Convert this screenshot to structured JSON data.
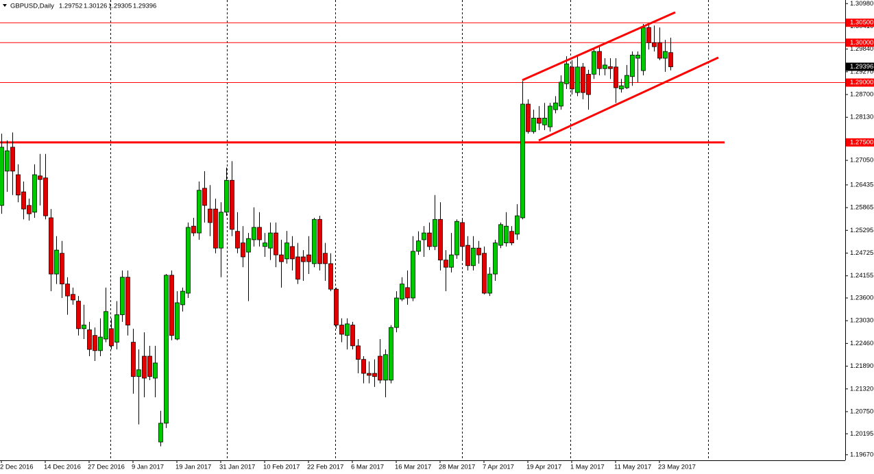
{
  "chart_data": {
    "type": "candlestick",
    "title": "GBPUSD,Daily",
    "categories": [
      "2 Dec 2016",
      null,
      null,
      null,
      null,
      null,
      null,
      null,
      "14 Dec 2016",
      null,
      null,
      null,
      null,
      null,
      null,
      null,
      "27 Dec 2016",
      null,
      null,
      null,
      null,
      null,
      null,
      null,
      "9 Jan 2017",
      null,
      null,
      null,
      null,
      null,
      null,
      null,
      "19 Jan 2017",
      null,
      null,
      null,
      null,
      null,
      null,
      null,
      "31 Jan 2017",
      null,
      null,
      null,
      null,
      null,
      null,
      null,
      "10 Feb 2017",
      null,
      null,
      null,
      null,
      null,
      null,
      null,
      "22 Feb 2017",
      null,
      null,
      null,
      null,
      null,
      null,
      null,
      "6 Mar 2017",
      null,
      null,
      null,
      null,
      null,
      null,
      null,
      "16 Mar 2017",
      null,
      null,
      null,
      null,
      null,
      null,
      null,
      "28 Mar 2017",
      null,
      null,
      null,
      null,
      null,
      null,
      null,
      "7 Apr 2017",
      null,
      null,
      null,
      null,
      null,
      null,
      null,
      "19 Apr 2017",
      null,
      null,
      null,
      null,
      null,
      null,
      null,
      "1 May 2017",
      null,
      null,
      null,
      null,
      null,
      null,
      null,
      "11 May 2017",
      null,
      null,
      null,
      null,
      null,
      null,
      null,
      "23 May 2017",
      null,
      null
    ],
    "open": [
      1.2592,
      1.2678,
      1.2738,
      1.2669,
      1.2626,
      1.2592,
      1.2575,
      1.2666,
      1.2661,
      1.2561,
      1.242,
      1.2472,
      1.2395,
      1.2369,
      1.2352,
      1.2283,
      1.228,
      1.2266,
      1.2228,
      1.2257,
      1.2283,
      1.2249,
      1.2318,
      1.2412,
      1.2249,
      1.2163,
      1.2214,
      1.2214,
      1.2159,
      1.1999,
      1.2046,
      1.2417,
      1.2257,
      1.2343,
      1.2372,
      1.254,
      1.2523,
      1.2635,
      1.2583,
      1.2583,
      1.2485,
      1.2575,
      1.2655,
      1.2527,
      1.2498,
      1.2475,
      1.2506,
      1.2537,
      1.2489,
      1.2485,
      1.2523,
      1.2468,
      1.2458,
      1.2489,
      1.2463,
      1.2463,
      1.2468,
      1.2446,
      1.2557,
      1.2472,
      1.2446,
      1.2382,
      1.2292,
      1.2266,
      1.2292,
      1.224,
      1.2206,
      1.2171,
      1.2171,
      1.2214,
      1.2154,
      1.2154,
      1.2286,
      1.2357,
      1.2386,
      1.236,
      1.2477,
      1.2506,
      1.2523,
      1.2489,
      1.2557,
      1.2455,
      1.2437,
      1.2468,
      1.2549,
      1.2492,
      1.2441,
      1.2485,
      1.2472,
      1.2372,
      1.242,
      1.2492,
      1.2498,
      1.2527,
      1.252,
      1.2561,
      1.2846,
      1.2777,
      1.2811,
      1.2794,
      1.2789,
      1.2832,
      1.2841,
      1.2897,
      1.2939,
      1.2875,
      1.2939,
      1.2921,
      1.2921,
      1.2978,
      1.2935,
      1.294,
      1.2939,
      1.2884,
      1.2887,
      1.2915,
      1.2961,
      1.293,
      1.3038,
      1.3,
      1.3,
      1.2961,
      1.29752
    ],
    "high": [
      1.2772,
      1.2755,
      1.2775,
      1.2695,
      1.2652,
      1.2609,
      1.2695,
      1.2721,
      1.2721,
      1.2583,
      1.2515,
      1.2503,
      1.2412,
      1.2386,
      1.2365,
      1.2343,
      1.23,
      1.2286,
      1.2309,
      1.2386,
      1.2309,
      1.2352,
      1.2429,
      1.2429,
      1.2283,
      1.2231,
      1.2274,
      1.224,
      1.224,
      1.2077,
      1.242,
      1.2429,
      1.2377,
      1.2386,
      1.2549,
      1.2561,
      1.2652,
      1.2678,
      1.2643,
      1.2609,
      1.26,
      1.2687,
      1.2703,
      1.2575,
      1.254,
      1.2523,
      1.2587,
      1.2575,
      1.2523,
      1.2549,
      1.2549,
      1.2506,
      1.2528,
      1.2515,
      1.2498,
      1.248,
      1.2515,
      1.2561,
      1.2566,
      1.2498,
      1.2472,
      1.2386,
      1.2309,
      1.2309,
      1.23,
      1.2257,
      1.2214,
      1.2201,
      1.2206,
      1.2257,
      1.2231,
      1.2292,
      1.2377,
      1.2412,
      1.2429,
      1.2515,
      1.2527,
      1.254,
      1.2549,
      1.2618,
      1.26,
      1.248,
      1.2523,
      1.2557,
      1.2557,
      1.2515,
      1.2515,
      1.2503,
      1.2489,
      1.2437,
      1.2506,
      1.2549,
      1.2575,
      1.254,
      1.2595,
      1.2904,
      1.2858,
      1.2832,
      1.2841,
      1.2849,
      1.2849,
      1.2866,
      1.2918,
      1.2966,
      1.2956,
      1.2969,
      1.2949,
      1.2932,
      1.2987,
      1.299,
      1.2961,
      1.2961,
      1.2961,
      1.2909,
      1.2944,
      1.2978,
      1.2978,
      1.3047,
      1.305,
      1.3043,
      1.3038,
      1.3007,
      1.30126
    ],
    "low": [
      1.2571,
      1.2626,
      1.2618,
      1.26,
      1.2557,
      1.2554,
      1.2561,
      1.2592,
      1.2557,
      1.2377,
      1.2395,
      1.236,
      1.2318,
      1.2343,
      1.2266,
      1.2257,
      1.2214,
      1.2202,
      1.2214,
      1.2249,
      1.2231,
      1.2231,
      1.23,
      1.2266,
      1.212,
      1.2043,
      1.2111,
      1.2154,
      1.2111,
      1.1988,
      1.2034,
      1.2254,
      1.2254,
      1.2326,
      1.236,
      1.2515,
      1.2506,
      1.2549,
      1.2515,
      1.2472,
      1.2412,
      1.2566,
      1.2515,
      1.2472,
      1.2437,
      1.2352,
      1.2489,
      1.2489,
      1.2463,
      1.2455,
      1.2437,
      1.2386,
      1.2446,
      1.2429,
      1.2395,
      1.2403,
      1.242,
      1.2437,
      1.2429,
      1.2403,
      1.2377,
      1.2283,
      1.2249,
      1.2231,
      1.2231,
      1.2171,
      1.2146,
      1.2146,
      1.2137,
      1.2146,
      1.2111,
      1.2146,
      1.2274,
      1.2352,
      1.2343,
      1.2352,
      1.2468,
      1.2463,
      1.248,
      1.248,
      1.2429,
      1.2377,
      1.2424,
      1.2458,
      1.2455,
      1.2429,
      1.2429,
      1.2446,
      1.2369,
      1.2365,
      1.2403,
      1.2485,
      1.2489,
      1.2492,
      1.2506,
      1.2557,
      1.2772,
      1.2772,
      1.2781,
      1.2781,
      1.2777,
      1.2823,
      1.2832,
      1.2884,
      1.287,
      1.2866,
      1.2858,
      1.2832,
      1.2909,
      1.2918,
      1.2918,
      1.2909,
      1.2849,
      1.2875,
      1.2884,
      1.2892,
      1.2901,
      1.2918,
      1.2983,
      1.2978,
      1.2956,
      1.2927,
      1.29305
    ],
    "close": [
      1.2738,
      1.2729,
      1.2678,
      1.2618,
      1.2583,
      1.2571,
      1.2669,
      1.2657,
      1.2566,
      1.242,
      1.248,
      1.2395,
      1.2365,
      1.2355,
      1.2283,
      1.2292,
      1.2231,
      1.2228,
      1.2262,
      1.2326,
      1.224,
      1.2318,
      1.2412,
      1.2292,
      1.2163,
      1.218,
      1.2159,
      1.2163,
      1.2197,
      1.2046,
      1.2417,
      1.2266,
      1.2348,
      1.2377,
      1.2537,
      1.2523,
      1.263,
      1.2592,
      1.2549,
      1.2485,
      1.2575,
      1.2655,
      1.2532,
      1.2485,
      1.2463,
      1.2509,
      1.2537,
      1.2506,
      1.2498,
      1.2523,
      1.2468,
      1.2451,
      1.2498,
      1.2458,
      1.2407,
      1.2451,
      1.2451,
      1.2557,
      1.2446,
      1.2446,
      1.2382,
      1.2292,
      1.2269,
      1.2295,
      1.224,
      1.2206,
      1.2171,
      1.2166,
      1.2163,
      1.2154,
      1.2218,
      1.2286,
      1.236,
      1.2395,
      1.236,
      1.2477,
      1.2503,
      1.2523,
      1.2489,
      1.2557,
      1.2455,
      1.2437,
      1.2468,
      1.2552,
      1.2489,
      1.2441,
      1.2485,
      1.2468,
      1.2372,
      1.242,
      1.2498,
      1.2544,
      1.254,
      1.2498,
      1.2566,
      1.2846,
      1.2777,
      1.2811,
      1.2798,
      1.2811,
      1.2841,
      1.2849,
      1.2901,
      1.2947,
      1.2884,
      1.2939,
      1.2875,
      1.287,
      1.2978,
      1.2935,
      1.2944,
      1.2935,
      1.2887,
      1.2892,
      1.2918,
      1.2969,
      1.2969,
      1.3038,
      1.3,
      1.299,
      1.2961,
      1.2978,
      1.29396
    ],
    "up_color": "#00c800",
    "down_color": "#e00000",
    "ylim": [
      1.1953,
      1.3107
    ],
    "yticks": [
      {
        "value": 1.3098,
        "label": "1.30980"
      },
      {
        "value": 1.3041,
        "label": "1.30410"
      },
      {
        "value": 1.2984,
        "label": "1.29840"
      },
      {
        "value": 1.2927,
        "label": "1.29270"
      },
      {
        "value": 1.287,
        "label": "1.28700"
      },
      {
        "value": 1.2813,
        "label": "1.28130"
      },
      {
        "value": 1.2705,
        "label": "1.27050"
      },
      1.26435,
      1.25865,
      1.25295,
      1.24725,
      1.24155,
      {
        "value": 1.236,
        "label": "1.23600"
      },
      {
        "value": 1.2303,
        "label": "1.23030"
      },
      {
        "value": 1.2246,
        "label": "1.22460"
      },
      {
        "value": 1.2189,
        "label": "1.21890"
      },
      {
        "value": 1.2132,
        "label": "1.21320"
      },
      {
        "value": 1.2075,
        "label": "1.20750"
      },
      1.20195,
      {
        "value": 1.1967,
        "label": "1.19670"
      }
    ],
    "levels": [
      {
        "value": 1.305,
        "label": "1.30500"
      },
      {
        "value": 1.3,
        "label": "1.30000"
      },
      {
        "value": 1.29,
        "label": "1.29000"
      },
      {
        "value": 1.275,
        "label": "1.27500",
        "thick": true
      }
    ],
    "level_color": "#ff0000",
    "last_price_color": "#000000"
  }
}
